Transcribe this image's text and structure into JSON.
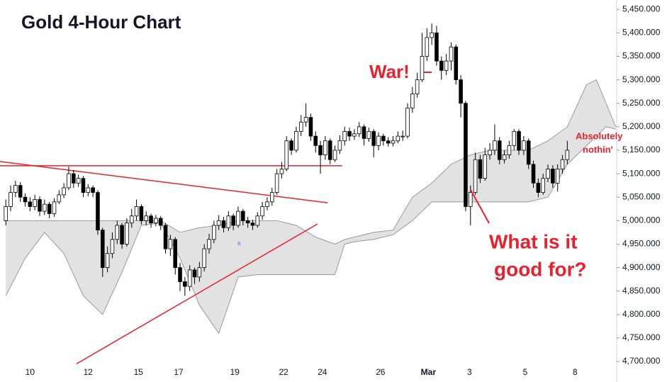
{
  "chart_data": {
    "type": "candlestick",
    "title": "Gold 4-Hour Chart",
    "xlim": [
      -1.2,
      126.2
    ],
    "ylim": [
      4685,
      5470
    ],
    "xticks": [
      {
        "value": 5,
        "label": "10"
      },
      {
        "value": 17,
        "label": "12"
      },
      {
        "value": 27.4,
        "label": "15"
      },
      {
        "value": 35.7,
        "label": "17"
      },
      {
        "value": 47.3,
        "label": "19"
      },
      {
        "value": 57.4,
        "label": "22"
      },
      {
        "value": 65.4,
        "label": "24"
      },
      {
        "value": 77.4,
        "label": "26"
      },
      {
        "value": 87.3,
        "label": "Mar"
      },
      {
        "value": 95.8,
        "label": "3"
      },
      {
        "value": 107.3,
        "label": "5"
      },
      {
        "value": 117.6,
        "label": "8"
      }
    ],
    "yticks": [
      {
        "value": 4700,
        "label": "4,700.000"
      },
      {
        "value": 4750,
        "label": "4,750.000"
      },
      {
        "value": 4800,
        "label": "4,800.000"
      },
      {
        "value": 4850,
        "label": "4,850.000"
      },
      {
        "value": 4900,
        "label": "4,900.000"
      },
      {
        "value": 4950,
        "label": "4,950.000"
      },
      {
        "value": 5000,
        "label": "5,000.000"
      },
      {
        "value": 5050,
        "label": "5,050.000"
      },
      {
        "value": 5100,
        "label": "5,100.000"
      },
      {
        "value": 5150,
        "label": "5,150.000"
      },
      {
        "value": 5200,
        "label": "5,200.000"
      },
      {
        "value": 5250,
        "label": "5,250.000"
      },
      {
        "value": 5300,
        "label": "5,300.000"
      },
      {
        "value": 5350,
        "label": "5,350.000"
      },
      {
        "value": 5400,
        "label": "5,400.000"
      },
      {
        "value": 5450,
        "label": "5,450.000"
      }
    ],
    "up_color": "#ffffff",
    "down_color": "#000000",
    "line_color": "#e8212d",
    "cloud_color": "#e2e2e2",
    "open": [
      5000,
      5030,
      5060,
      5075,
      5050,
      5040,
      5030,
      5045,
      5020,
      5035,
      5015,
      5040,
      5055,
      5070,
      5100,
      5080,
      5090,
      5060,
      5070,
      5060,
      4980,
      4900,
      4930,
      4960,
      4990,
      4950,
      4995,
      5010,
      5030,
      5000,
      5010,
      4995,
      5005,
      4990,
      4940,
      4960,
      4900,
      4870,
      4860,
      4895,
      4880,
      4900,
      4940,
      4960,
      4990,
      5000,
      4985,
      5010,
      4990,
      5020,
      5000,
      4995,
      4990,
      5010,
      5030,
      5040,
      5060,
      5100,
      5110,
      5170,
      5150,
      5190,
      5210,
      5220,
      5180,
      5160,
      5140,
      5170,
      5130,
      5150,
      5170,
      5190,
      5180,
      5185,
      5200,
      5175,
      5190,
      5160,
      5180,
      5170,
      5165,
      5170,
      5180,
      5180,
      5240,
      5270,
      5300,
      5350,
      5390,
      5400,
      5340,
      5320,
      5340,
      5370,
      5300,
      5250,
      5030,
      5060,
      5130,
      5090,
      5140,
      5150,
      5170,
      5130,
      5140,
      5160,
      5190,
      5150,
      5170,
      5120,
      5080,
      5060,
      5090,
      5110,
      5080,
      5110,
      5130
    ],
    "high": [
      5045,
      5075,
      5085,
      5082,
      5058,
      5050,
      5055,
      5052,
      5045,
      5040,
      5048,
      5065,
      5080,
      5115,
      5108,
      5098,
      5095,
      5078,
      5075,
      5065,
      4985,
      4945,
      4975,
      5000,
      4995,
      5005,
      5025,
      5045,
      5035,
      5020,
      5015,
      5012,
      5010,
      4995,
      4970,
      4965,
      4910,
      4880,
      4905,
      4900,
      4912,
      4950,
      4972,
      5000,
      5012,
      5008,
      5020,
      5015,
      5030,
      5025,
      5008,
      5002,
      5018,
      5040,
      5050,
      5070,
      5110,
      5125,
      5180,
      5175,
      5200,
      5225,
      5250,
      5228,
      5190,
      5170,
      5180,
      5175,
      5160,
      5182,
      5200,
      5198,
      5195,
      5210,
      5205,
      5198,
      5195,
      5188,
      5185,
      5178,
      5180,
      5190,
      5192,
      5250,
      5285,
      5315,
      5400,
      5410,
      5420,
      5415,
      5350,
      5355,
      5380,
      5375,
      5310,
      5255,
      5075,
      5145,
      5140,
      5155,
      5165,
      5205,
      5178,
      5150,
      5170,
      5195,
      5195,
      5180,
      5175,
      5128,
      5090,
      5100,
      5120,
      5118,
      5120,
      5140,
      5170
    ],
    "low": [
      4990,
      5020,
      5050,
      5040,
      5030,
      5020,
      5022,
      5010,
      5012,
      5005,
      5008,
      5035,
      5048,
      5065,
      5070,
      5072,
      5050,
      5052,
      5050,
      4970,
      4880,
      4890,
      4920,
      4950,
      4940,
      4945,
      4985,
      5000,
      4992,
      4990,
      4985,
      4988,
      4980,
      4930,
      4925,
      4885,
      4850,
      4840,
      4850,
      4865,
      4870,
      4892,
      4930,
      4952,
      4980,
      4975,
      4978,
      4980,
      4985,
      4990,
      4985,
      4980,
      4985,
      5002,
      5022,
      5032,
      5055,
      5090,
      5105,
      5140,
      5145,
      5180,
      5200,
      5170,
      5145,
      5100,
      5130,
      5120,
      5125,
      5142,
      5160,
      5170,
      5172,
      5178,
      5160,
      5168,
      5135,
      5150,
      5160,
      5158,
      5158,
      5165,
      5170,
      5175,
      5230,
      5262,
      5295,
      5340,
      5375,
      5330,
      5300,
      5310,
      5320,
      5290,
      5220,
      5020,
      4990,
      5055,
      5080,
      5085,
      5130,
      5140,
      5120,
      5122,
      5132,
      5150,
      5140,
      5140,
      5110,
      5070,
      5050,
      5055,
      5082,
      5070,
      5062,
      5100,
      5120
    ],
    "close": [
      5030,
      5060,
      5075,
      5050,
      5040,
      5030,
      5045,
      5020,
      5035,
      5015,
      5040,
      5055,
      5070,
      5100,
      5080,
      5090,
      5060,
      5070,
      5060,
      4980,
      4900,
      4930,
      4960,
      4990,
      4950,
      4995,
      5010,
      5030,
      5000,
      5010,
      4995,
      5005,
      4990,
      4940,
      4960,
      4900,
      4870,
      4860,
      4895,
      4880,
      4900,
      4940,
      4960,
      4990,
      5000,
      4985,
      5010,
      4990,
      5020,
      5000,
      4995,
      4990,
      5010,
      5030,
      5040,
      5060,
      5100,
      5110,
      5170,
      5150,
      5190,
      5210,
      5220,
      5180,
      5160,
      5140,
      5170,
      5130,
      5150,
      5170,
      5190,
      5180,
      5185,
      5200,
      5175,
      5190,
      5160,
      5180,
      5170,
      5165,
      5170,
      5180,
      5180,
      5240,
      5270,
      5300,
      5350,
      5390,
      5400,
      5340,
      5320,
      5340,
      5370,
      5300,
      5250,
      5030,
      5060,
      5130,
      5090,
      5140,
      5150,
      5170,
      5130,
      5140,
      5160,
      5190,
      5150,
      5170,
      5120,
      5080,
      5060,
      5090,
      5110,
      5080,
      5110,
      5130,
      5150
    ],
    "cloud": {
      "x": [
        0,
        4,
        8,
        12,
        16,
        20,
        24,
        28,
        32,
        36,
        40,
        44,
        48,
        52,
        56,
        60,
        64,
        68,
        70,
        72,
        76,
        80,
        84,
        88,
        92,
        96,
        100,
        104,
        108,
        112,
        116,
        120,
        122,
        124,
        126
      ],
      "upper": [
        5000,
        5000,
        5000,
        5000,
        5000,
        5000,
        5000,
        5000,
        5000,
        4975,
        4985,
        4990,
        5000,
        5000,
        5000,
        4990,
        4965,
        4950,
        4960,
        4965,
        4975,
        4980,
        5050,
        5080,
        5120,
        5140,
        5150,
        5150,
        5150,
        5170,
        5200,
        5290,
        5300,
        5250,
        5200
      ],
      "lower": [
        4840,
        4920,
        4975,
        4930,
        4840,
        4800,
        4890,
        4990,
        4995,
        4920,
        4820,
        4760,
        4880,
        4885,
        4885,
        4885,
        4885,
        4885,
        4950,
        4955,
        4960,
        4970,
        5000,
        5040,
        5040,
        5040,
        5040,
        5040,
        5040,
        5050,
        5120,
        5160,
        5180,
        5200,
        5195
      ]
    },
    "trendlines": [
      {
        "x": [
          -1.2,
          66.5
        ],
        "y": [
          5126,
          5038
        ]
      },
      {
        "x": [
          -1.2,
          69.5
        ],
        "y": [
          5117,
          5117
        ]
      },
      {
        "x": [
          14.6,
          64.4
        ],
        "y": [
          4695,
          4993
        ]
      }
    ],
    "annotations": [
      "War!",
      "What is it",
      "good for?",
      "Absolutely",
      "nothin'",
      "B"
    ]
  }
}
